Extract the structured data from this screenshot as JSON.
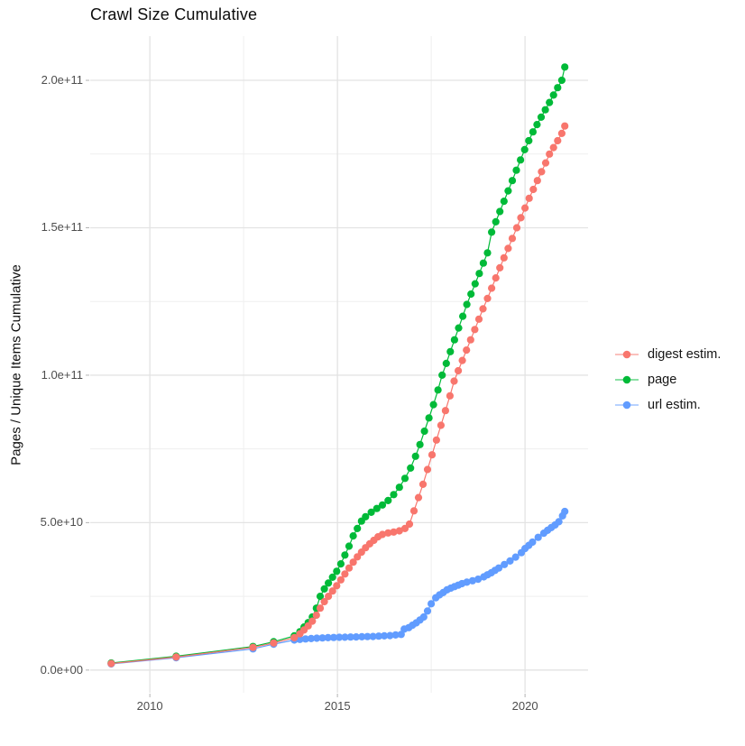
{
  "title": "Crawl Size Cumulative",
  "y_axis": {
    "label": "Pages / Unique Items Cumulative",
    "tick_labels": [
      "0.0e+00",
      "5.0e+10",
      "1.0e+11",
      "1.5e+11",
      "2.0e+11"
    ],
    "tick_values": [
      0,
      50000000000.0,
      100000000000.0,
      150000000000.0,
      200000000000.0
    ],
    "minor_values": [
      25000000000.0,
      75000000000.0,
      125000000000.0,
      175000000000.0
    ],
    "range": [
      -7700000000.0,
      215000000000.0
    ],
    "grid": true
  },
  "x_axis": {
    "label": "",
    "tick_labels": [
      "2010",
      "2015",
      "2020"
    ],
    "tick_values": [
      2010,
      2015,
      2020
    ],
    "minor_values": [
      2012.5,
      2017.5
    ],
    "range": [
      2008.41,
      2021.68
    ],
    "grid": true
  },
  "legend": {
    "position": "right",
    "items": [
      {
        "label": "digest estim.",
        "color": "#F8766D"
      },
      {
        "label": "page",
        "color": "#00BA38"
      },
      {
        "label": "url estim.",
        "color": "#619CFF"
      }
    ]
  },
  "colors": {
    "grid_major": "#e3e3e3",
    "grid_minor": "#efefef",
    "axis_text": "#4d4d4d",
    "tick_mark": "#b3b3b3"
  },
  "chart_data": {
    "type": "line",
    "marker": "point",
    "title": "Crawl Size Cumulative",
    "xlabel": "",
    "ylabel": "Pages / Unique Items Cumulative",
    "xlim": [
      2008.41,
      2021.68
    ],
    "ylim": [
      -7700000000.0,
      215000000000.0
    ],
    "legend_position": "right",
    "series": [
      {
        "name": "page",
        "color": "#00BA38",
        "points": [
          [
            2008.97,
            2400000000.0
          ],
          [
            2010.7,
            4700000000.0
          ],
          [
            2012.75,
            8000000000.0
          ],
          [
            2013.3,
            9600000000.0
          ],
          [
            2013.85,
            11600000000.0
          ],
          [
            2014.0,
            13000000000.0
          ],
          [
            2014.11,
            14600000000.0
          ],
          [
            2014.22,
            16100000000.0
          ],
          [
            2014.33,
            18000000000.0
          ],
          [
            2014.44,
            21000000000.0
          ],
          [
            2014.54,
            25000000000.0
          ],
          [
            2014.65,
            27500000000.0
          ],
          [
            2014.76,
            29500000000.0
          ],
          [
            2014.87,
            31500000000.0
          ],
          [
            2014.98,
            33500000000.0
          ],
          [
            2015.09,
            36000000000.0
          ],
          [
            2015.2,
            39000000000.0
          ],
          [
            2015.31,
            42000000000.0
          ],
          [
            2015.42,
            45500000000.0
          ],
          [
            2015.53,
            48000000000.0
          ],
          [
            2015.64,
            50500000000.0
          ],
          [
            2015.75,
            52000000000.0
          ],
          [
            2015.9,
            53500000000.0
          ],
          [
            2016.05,
            54800000000.0
          ],
          [
            2016.2,
            56000000000.0
          ],
          [
            2016.35,
            57500000000.0
          ],
          [
            2016.5,
            59500000000.0
          ],
          [
            2016.65,
            62000000000.0
          ],
          [
            2016.8,
            65000000000.0
          ],
          [
            2016.95,
            68500000000.0
          ],
          [
            2017.08,
            72500000000.0
          ],
          [
            2017.2,
            76500000000.0
          ],
          [
            2017.32,
            81000000000.0
          ],
          [
            2017.44,
            85500000000.0
          ],
          [
            2017.56,
            90000000000.0
          ],
          [
            2017.68,
            95000000000.0
          ],
          [
            2017.79,
            100000000000.0
          ],
          [
            2017.9,
            104000000000.0
          ],
          [
            2018.01,
            108000000000.0
          ],
          [
            2018.12,
            112000000000.0
          ],
          [
            2018.23,
            116000000000.0
          ],
          [
            2018.34,
            120000000000.0
          ],
          [
            2018.45,
            124000000000.0
          ],
          [
            2018.56,
            127500000000.0
          ],
          [
            2018.67,
            131000000000.0
          ],
          [
            2018.78,
            134500000000.0
          ],
          [
            2018.89,
            138000000000.0
          ],
          [
            2019.0,
            141500000000.0
          ],
          [
            2019.11,
            148500000000.0
          ],
          [
            2019.22,
            152000000000.0
          ],
          [
            2019.33,
            155500000000.0
          ],
          [
            2019.44,
            159000000000.0
          ],
          [
            2019.55,
            162500000000.0
          ],
          [
            2019.66,
            166000000000.0
          ],
          [
            2019.77,
            169500000000.0
          ],
          [
            2019.88,
            173000000000.0
          ],
          [
            2019.99,
            176500000000.0
          ],
          [
            2020.1,
            179500000000.0
          ],
          [
            2020.21,
            182500000000.0
          ],
          [
            2020.32,
            185000000000.0
          ],
          [
            2020.43,
            187500000000.0
          ],
          [
            2020.54,
            190000000000.0
          ],
          [
            2020.65,
            192500000000.0
          ],
          [
            2020.76,
            195000000000.0
          ],
          [
            2020.87,
            197500000000.0
          ],
          [
            2020.98,
            200000000000.0
          ],
          [
            2021.06,
            204500000000.0
          ]
        ]
      },
      {
        "name": "url estim.",
        "color": "#619CFF",
        "points": [
          [
            2008.97,
            2100000000.0
          ],
          [
            2010.7,
            4200000000.0
          ],
          [
            2012.75,
            7200000000.0
          ],
          [
            2013.3,
            8800000000.0
          ],
          [
            2013.85,
            10200000000.0
          ],
          [
            2014.0,
            10400000000.0
          ],
          [
            2014.15,
            10550000000.0
          ],
          [
            2014.3,
            10700000000.0
          ],
          [
            2014.45,
            10800000000.0
          ],
          [
            2014.6,
            10900000000.0
          ],
          [
            2014.75,
            11000000000.0
          ],
          [
            2014.9,
            11050000000.0
          ],
          [
            2015.05,
            11100000000.0
          ],
          [
            2015.2,
            11150000000.0
          ],
          [
            2015.35,
            11200000000.0
          ],
          [
            2015.5,
            11250000000.0
          ],
          [
            2015.65,
            11300000000.0
          ],
          [
            2015.8,
            11350000000.0
          ],
          [
            2015.95,
            11400000000.0
          ],
          [
            2016.1,
            11500000000.0
          ],
          [
            2016.25,
            11600000000.0
          ],
          [
            2016.4,
            11700000000.0
          ],
          [
            2016.55,
            11900000000.0
          ],
          [
            2016.7,
            12100000000.0
          ],
          [
            2016.78,
            13900000000.0
          ],
          [
            2016.9,
            14400000000.0
          ],
          [
            2017.0,
            15200000000.0
          ],
          [
            2017.1,
            16000000000.0
          ],
          [
            2017.2,
            17000000000.0
          ],
          [
            2017.3,
            18000000000.0
          ],
          [
            2017.4,
            20000000000.0
          ],
          [
            2017.5,
            22500000000.0
          ],
          [
            2017.62,
            24500000000.0
          ],
          [
            2017.72,
            25500000000.0
          ],
          [
            2017.82,
            26300000000.0
          ],
          [
            2017.92,
            27200000000.0
          ],
          [
            2018.02,
            27800000000.0
          ],
          [
            2018.12,
            28300000000.0
          ],
          [
            2018.22,
            28800000000.0
          ],
          [
            2018.32,
            29300000000.0
          ],
          [
            2018.45,
            29800000000.0
          ],
          [
            2018.6,
            30300000000.0
          ],
          [
            2018.75,
            30800000000.0
          ],
          [
            2018.9,
            31600000000.0
          ],
          [
            2019.0,
            32300000000.0
          ],
          [
            2019.1,
            33000000000.0
          ],
          [
            2019.2,
            33800000000.0
          ],
          [
            2019.3,
            34600000000.0
          ],
          [
            2019.45,
            35800000000.0
          ],
          [
            2019.6,
            37000000000.0
          ],
          [
            2019.75,
            38300000000.0
          ],
          [
            2019.9,
            39800000000.0
          ],
          [
            2020.0,
            41200000000.0
          ],
          [
            2020.1,
            42300000000.0
          ],
          [
            2020.2,
            43400000000.0
          ],
          [
            2020.35,
            45000000000.0
          ],
          [
            2020.5,
            46400000000.0
          ],
          [
            2020.6,
            47400000000.0
          ],
          [
            2020.7,
            48300000000.0
          ],
          [
            2020.8,
            49200000000.0
          ],
          [
            2020.9,
            50300000000.0
          ],
          [
            2021.0,
            52300000000.0
          ],
          [
            2021.06,
            53800000000.0
          ]
        ]
      },
      {
        "name": "digest estim.",
        "color": "#F8766D",
        "points": [
          [
            2008.97,
            2200000000.0
          ],
          [
            2010.7,
            4400000000.0
          ],
          [
            2012.75,
            7700000000.0
          ],
          [
            2013.3,
            9200000000.0
          ],
          [
            2013.85,
            11000000000.0
          ],
          [
            2014.0,
            12300000000.0
          ],
          [
            2014.11,
            13600000000.0
          ],
          [
            2014.22,
            15000000000.0
          ],
          [
            2014.33,
            16600000000.0
          ],
          [
            2014.44,
            18600000000.0
          ],
          [
            2014.54,
            21000000000.0
          ],
          [
            2014.65,
            23200000000.0
          ],
          [
            2014.76,
            25000000000.0
          ],
          [
            2014.87,
            26800000000.0
          ],
          [
            2014.98,
            28600000000.0
          ],
          [
            2015.09,
            30600000000.0
          ],
          [
            2015.2,
            32600000000.0
          ],
          [
            2015.31,
            34600000000.0
          ],
          [
            2015.42,
            36600000000.0
          ],
          [
            2015.53,
            38400000000.0
          ],
          [
            2015.64,
            40000000000.0
          ],
          [
            2015.75,
            41500000000.0
          ],
          [
            2015.86,
            42800000000.0
          ],
          [
            2015.97,
            44000000000.0
          ],
          [
            2016.08,
            45200000000.0
          ],
          [
            2016.2,
            46000000000.0
          ],
          [
            2016.35,
            46500000000.0
          ],
          [
            2016.5,
            46800000000.0
          ],
          [
            2016.65,
            47200000000.0
          ],
          [
            2016.8,
            48000000000.0
          ],
          [
            2016.92,
            49500000000.0
          ],
          [
            2017.04,
            54000000000.0
          ],
          [
            2017.16,
            58500000000.0
          ],
          [
            2017.28,
            63000000000.0
          ],
          [
            2017.4,
            68000000000.0
          ],
          [
            2017.52,
            73000000000.0
          ],
          [
            2017.64,
            78000000000.0
          ],
          [
            2017.76,
            83000000000.0
          ],
          [
            2017.88,
            88000000000.0
          ],
          [
            2018.0,
            93000000000.0
          ],
          [
            2018.11,
            98000000000.0
          ],
          [
            2018.22,
            101500000000.0
          ],
          [
            2018.33,
            105000000000.0
          ],
          [
            2018.44,
            108500000000.0
          ],
          [
            2018.55,
            112000000000.0
          ],
          [
            2018.66,
            115500000000.0
          ],
          [
            2018.77,
            119000000000.0
          ],
          [
            2018.88,
            122500000000.0
          ],
          [
            2019.0,
            126000000000.0
          ],
          [
            2019.11,
            129500000000.0
          ],
          [
            2019.22,
            133000000000.0
          ],
          [
            2019.33,
            136400000000.0
          ],
          [
            2019.44,
            139800000000.0
          ],
          [
            2019.55,
            143000000000.0
          ],
          [
            2019.66,
            146400000000.0
          ],
          [
            2019.78,
            150000000000.0
          ],
          [
            2019.89,
            153400000000.0
          ],
          [
            2020.0,
            156700000000.0
          ],
          [
            2020.11,
            160000000000.0
          ],
          [
            2020.22,
            163000000000.0
          ],
          [
            2020.33,
            166000000000.0
          ],
          [
            2020.44,
            169000000000.0
          ],
          [
            2020.55,
            172000000000.0
          ],
          [
            2020.65,
            175000000000.0
          ],
          [
            2020.76,
            177200000000.0
          ],
          [
            2020.87,
            179500000000.0
          ],
          [
            2020.98,
            182000000000.0
          ],
          [
            2021.06,
            184500000000.0
          ]
        ]
      }
    ]
  }
}
